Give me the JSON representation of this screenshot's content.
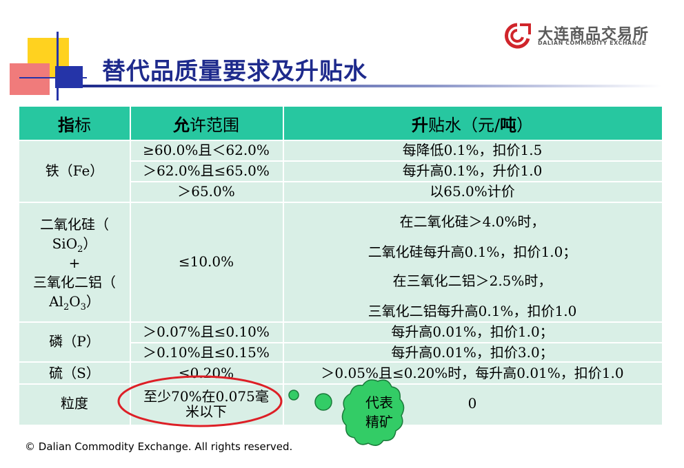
{
  "title": "替代品质量要求及升贴水",
  "logo": {
    "name_cn": "大连商品交易所",
    "name_en": "DALIAN COMMODITY EXCHANGE"
  },
  "table": {
    "headers": {
      "indicator_bold": "指",
      "indicator_rest": "标",
      "range_bold": "允",
      "range_rest": "许范围",
      "premium_bold": "升",
      "premium_mid": "贴水（元/",
      "premium_bold2": "吨",
      "premium_end": "）"
    },
    "iron": {
      "label": "铁（Fe）",
      "range": [
        "≥60.0%且＜62.0%",
        "＞62.0%且≤65.0%",
        "＞65.0%"
      ],
      "premium": [
        "每降低0.1%，扣价1.5",
        "每升高0.1%，升价1.0",
        "以65.0%计价"
      ]
    },
    "silica": {
      "label": [
        "二氧化硅（",
        "SiO",
        "2",
        "）",
        "+",
        "三氧化二铝（",
        "Al",
        "2",
        "O",
        "3",
        "）"
      ],
      "range": "≤10.0%",
      "premium": [
        "在二氧化硅＞4.0%时，",
        "二氧化硅每升高0.1%，扣价1.0；",
        "在三氧化二铝＞2.5%时，",
        "三氧化二铝每升高0.1%，扣价1.0"
      ]
    },
    "phosphorus": {
      "label": "磷（P）",
      "range": [
        "＞0.07%且≤0.10%",
        "＞0.10%且≤0.15%"
      ],
      "premium": [
        "每升高0.01%，扣价1.0；",
        "每升高0.01%，扣价3.0；"
      ]
    },
    "sulfur": {
      "label": "硫（S）",
      "range": "≤0.20%",
      "premium": "＞0.05%且≤0.20%时，每升高0.01%，扣价1.0"
    },
    "granularity": {
      "label": "粒度",
      "range": [
        "至少70%在0.075毫",
        "米以下"
      ],
      "premium": "0"
    }
  },
  "callout": [
    "代表",
    "精矿"
  ],
  "copyright": "© Dalian Commodity Exchange. All rights reserved.",
  "colors": {
    "header": "#27c7a0",
    "row": "#d9efe6",
    "title": "#1e2a8c",
    "callout": "#33cc66",
    "highlight": "#dd1f26"
  }
}
